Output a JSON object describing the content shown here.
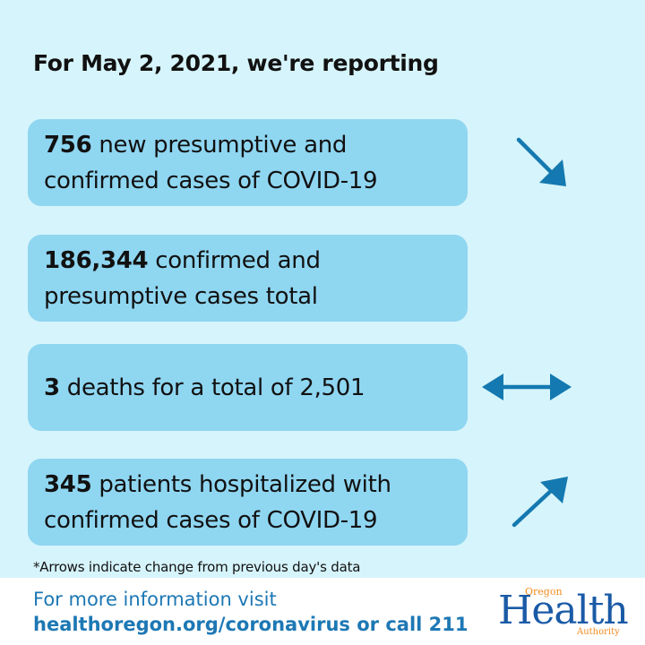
{
  "headline": "For May 2, 2021, we're reporting",
  "cards": [
    {
      "number": "756",
      "line1_rest": " new presumptive and",
      "line2": "confirmed cases of COVID-19",
      "arrow": "arrow-down-right-icon"
    },
    {
      "number": "186,344",
      "line1_rest": " confirmed and",
      "line2": "presumptive cases total",
      "arrow": ""
    },
    {
      "number": "3",
      "line1_rest": " deaths for a total of 2,501",
      "line2": "",
      "arrow": "arrow-left-right-icon"
    },
    {
      "number": "345",
      "line1_rest": " patients hospitalized with",
      "line2": "confirmed cases of COVID-19",
      "arrow": "arrow-up-right-icon"
    }
  ],
  "footnote": "*Arrows indicate change from previous day's data",
  "footer": {
    "line1": "For more information visit",
    "line2": "healthoregon.org/coronavirus or call 211"
  },
  "logo": {
    "oregon": "Oregon",
    "health": "Health",
    "authority": "Authority"
  },
  "colors": {
    "background": "#d6f4fb",
    "card": "#8fd6f1",
    "arrow": "#1479b0",
    "footer_text": "#1d78b4",
    "logo_blue": "#1a5aa6",
    "logo_orange": "#f08a1e"
  }
}
